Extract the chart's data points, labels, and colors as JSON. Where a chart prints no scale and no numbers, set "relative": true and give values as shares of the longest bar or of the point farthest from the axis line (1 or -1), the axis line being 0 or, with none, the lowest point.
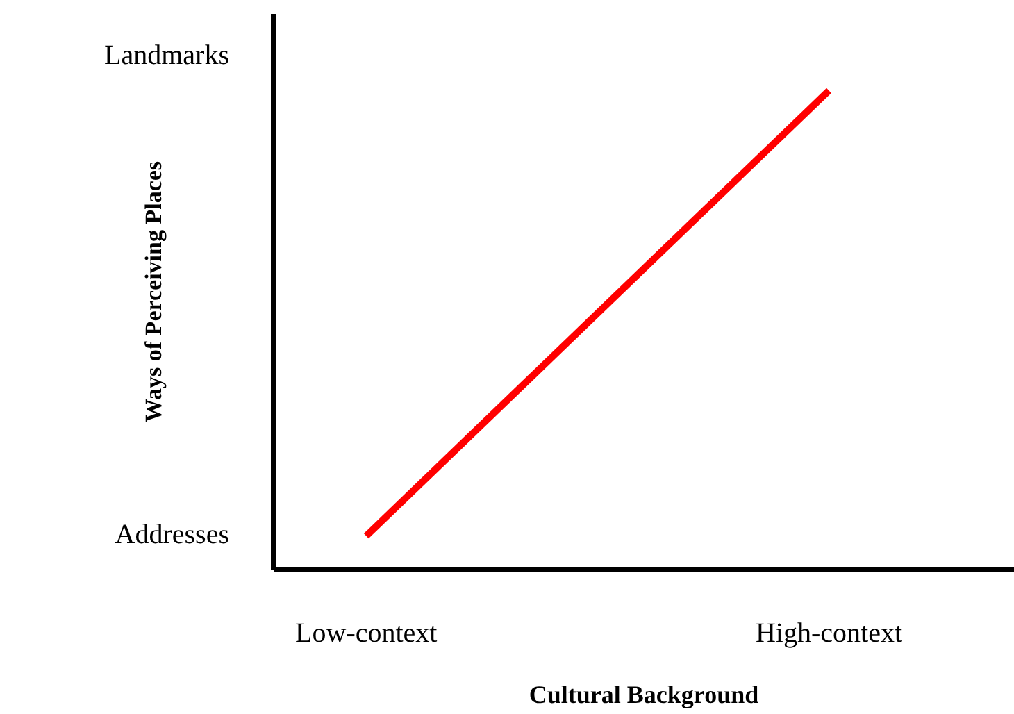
{
  "chart_data": {
    "type": "line",
    "xlabel": "Cultural Background",
    "ylabel": "Ways of Perceiving Places",
    "categories": [
      "Low-context",
      "High-context"
    ],
    "series": [
      {
        "color": "#ff0000",
        "values": [
          0.07,
          1
        ]
      }
    ],
    "relative": true,
    "annotations": [
      "Addresses",
      "Landmarks"
    ]
  }
}
